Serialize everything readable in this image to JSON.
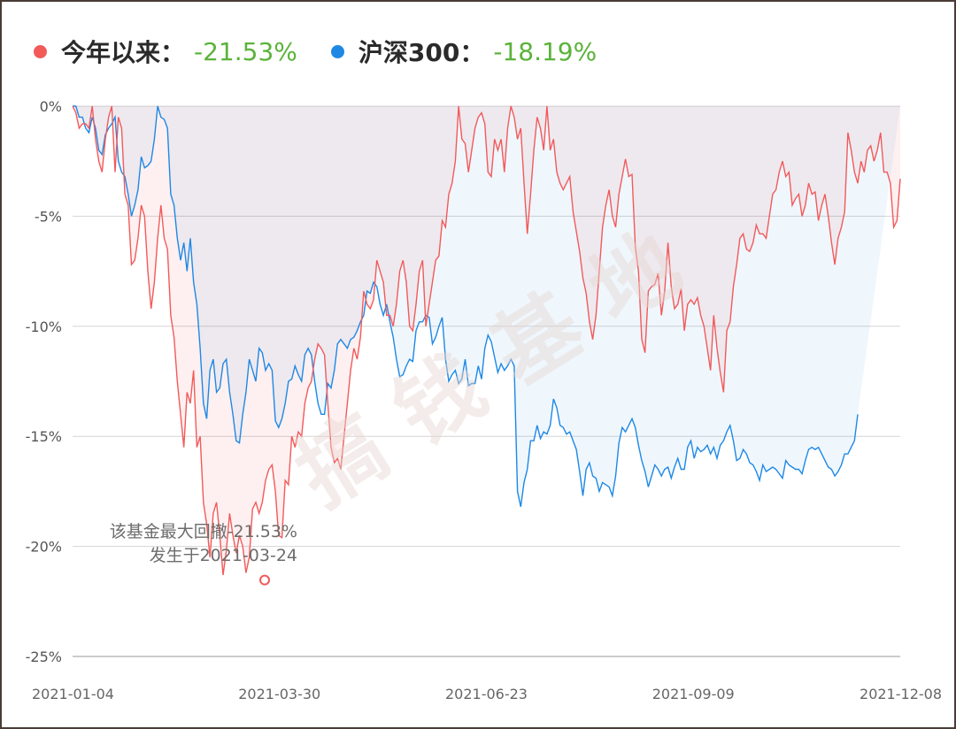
{
  "legend": {
    "fund": {
      "name": "今年以来：",
      "value": "-21.53%",
      "color": "#f25a5a"
    },
    "index": {
      "name": "沪深300：",
      "value": "-18.19%",
      "color": "#1e88e5"
    }
  },
  "watermark": "搞钱基地",
  "annotation": {
    "line1": "该基金最大回撤-21.53%",
    "line2": "发生于2021-03-24"
  },
  "chart_data": {
    "type": "line",
    "ylim": [
      -25,
      0
    ],
    "yticks": [
      0,
      -5,
      -10,
      -15,
      -20,
      -25
    ],
    "ytick_labels": [
      "0%",
      "-5%",
      "-10%",
      "-15%",
      "-20%",
      "-25%"
    ],
    "xtick_labels": [
      "2021-01-04",
      "2021-03-30",
      "2021-06-23",
      "2021-09-09",
      "2021-12-08"
    ],
    "grid": true,
    "max_drawdown": {
      "date": "2021-03-24",
      "value": -21.53
    },
    "series": [
      {
        "name": "今年以来",
        "color": "#f25a5a",
        "values": [
          0,
          -0.3,
          -1,
          -0.8,
          -0.8,
          -1,
          0,
          -1.5,
          -2.5,
          -3,
          -1.5,
          -0.5,
          0,
          -3,
          -0.5,
          -1,
          -4,
          -4.5,
          -7.2,
          -7,
          -6,
          -4.5,
          -5,
          -7.5,
          -9.2,
          -8,
          -6,
          -4.5,
          -6,
          -6.5,
          -9.5,
          -10.5,
          -12.5,
          -14,
          -15.5,
          -13,
          -13.5,
          -12,
          -15.5,
          -15,
          -18,
          -19,
          -20.5,
          -18.5,
          -18,
          -19.5,
          -21.3,
          -20.2,
          -18.5,
          -19.5,
          -20.3,
          -19.5,
          -20,
          -21.2,
          -20.5,
          -18.3,
          -18,
          -18.5,
          -18,
          -17,
          -16.5,
          -16.3,
          -17.5,
          -19.5,
          -19.6,
          -17,
          -17.2,
          -15,
          -15.5,
          -14.8,
          -15,
          -13.5,
          -12.8,
          -12.5,
          -11.5,
          -10.8,
          -11,
          -11.3,
          -13.5,
          -15.5,
          -16.2,
          -16,
          -16.5,
          -15,
          -13.5,
          -12,
          -11,
          -11.5,
          -10.5,
          -8.4,
          -9,
          -9.2,
          -8.8,
          -7,
          -7.5,
          -8,
          -9.5,
          -9.5,
          -10,
          -9,
          -7.5,
          -7,
          -8,
          -10,
          -10.2,
          -9,
          -7.5,
          -7,
          -10,
          -9,
          -8,
          -7,
          -6.8,
          -5.2,
          -5.5,
          -4,
          -3.5,
          -2.5,
          0,
          -1.5,
          -1.7,
          -3,
          -2,
          -1,
          -0.5,
          -0.3,
          -0.8,
          -3,
          -3.2,
          -1.5,
          -2,
          -1.5,
          -3,
          -1,
          0,
          -0.5,
          -1.5,
          -1,
          -3.5,
          -5.8,
          -4,
          -2,
          -0.5,
          -1,
          -2,
          0,
          -2,
          -1.5,
          -3,
          -3.5,
          -3.8,
          -3.5,
          -3.2,
          -4.8,
          -5.7,
          -6.6,
          -7.8,
          -8.5,
          -9.8,
          -10.6,
          -9.5,
          -7.5,
          -5.5,
          -4.5,
          -3.8,
          -5,
          -5.5,
          -4,
          -3.2,
          -2.4,
          -3.2,
          -3.1,
          -6.4,
          -7.5,
          -10.6,
          -11.2,
          -8.4,
          -8.2,
          -8.1,
          -7.6,
          -9.5,
          -8.4,
          -6.2,
          -8.2,
          -9.2,
          -9,
          -8.3,
          -10.2,
          -9,
          -8.8,
          -9,
          -8.7,
          -9.5,
          -10,
          -11,
          -12,
          -9.5,
          -11,
          -12.1,
          -13,
          -10.2,
          -9.8,
          -8.2,
          -7.2,
          -6,
          -5.8,
          -6.5,
          -6.6,
          -6.2,
          -5.4,
          -5.8,
          -5.8,
          -6,
          -5,
          -4,
          -3.8,
          -3,
          -2.5,
          -3.2,
          -3,
          -4.5,
          -4.2,
          -4,
          -5,
          -4.5,
          -3.5,
          -4,
          -3.9,
          -5.2,
          -4.5,
          -4,
          -5,
          -6.2,
          -7.2,
          -6,
          -5.5,
          -4.8,
          -1.2,
          -2,
          -3,
          -3.5,
          -2.5,
          -3,
          -2,
          -1.8,
          -2.5,
          -2,
          -1.2,
          -3,
          -3,
          -3.5,
          -5.5,
          -5.2,
          -3.3
        ]
      },
      {
        "name": "沪深300",
        "color": "#1e88e5",
        "values": [
          0,
          0,
          -0.5,
          -0.5,
          -1,
          -1.2,
          -0.5,
          -1,
          -2,
          -2.2,
          -1.3,
          -1,
          -0.8,
          -0.5,
          -2.5,
          -3,
          -3.2,
          -4,
          -5,
          -4.5,
          -3.8,
          -2.3,
          -2.8,
          -2.7,
          -2.5,
          -1.5,
          0,
          -0.5,
          -0.6,
          -1,
          -4,
          -4.5,
          -6,
          -7,
          -6.2,
          -7.5,
          -6,
          -8,
          -9,
          -11,
          -13.5,
          -14.2,
          -12,
          -11.5,
          -13,
          -12.8,
          -11.7,
          -11.5,
          -13,
          -14,
          -15.2,
          -15.3,
          -14,
          -13,
          -11.5,
          -12,
          -12.5,
          -11,
          -11.2,
          -12,
          -11.7,
          -12,
          -14.3,
          -14.6,
          -14.2,
          -13.5,
          -12.5,
          -12.4,
          -11.8,
          -12.2,
          -12.5,
          -11.3,
          -11,
          -11.3,
          -12.5,
          -13.5,
          -14,
          -14,
          -12.6,
          -12.8,
          -12,
          -10.8,
          -10.6,
          -10.8,
          -11,
          -10.6,
          -10.5,
          -10.2,
          -9.8,
          -9.5,
          -8.4,
          -8.5,
          -8,
          -8.2,
          -9,
          -9.5,
          -9,
          -9.8,
          -10.5,
          -11.5,
          -12.3,
          -12.2,
          -11.8,
          -11.5,
          -11.6,
          -10.2,
          -9.8,
          -9.8,
          -9.5,
          -9.6,
          -10.8,
          -10.5,
          -10,
          -9.6,
          -11.5,
          -12.5,
          -12.2,
          -12,
          -12.6,
          -12.4,
          -11.5,
          -12.7,
          -12.6,
          -12.6,
          -11.8,
          -12.4,
          -11,
          -10.4,
          -10.7,
          -11.4,
          -12.1,
          -11.7,
          -12,
          -11.8,
          -11.5,
          -11.8,
          -17.5,
          -18.2,
          -17.1,
          -16.5,
          -15.2,
          -15.2,
          -14.5,
          -15.1,
          -14.8,
          -14.9,
          -14.5,
          -13.3,
          -13.7,
          -14.5,
          -14.6,
          -14.9,
          -14.8,
          -15.2,
          -15.6,
          -16.6,
          -17.7,
          -16.5,
          -16.2,
          -16.8,
          -16.9,
          -17.5,
          -17.1,
          -17.2,
          -17.3,
          -17.7,
          -16.8,
          -15.3,
          -14.6,
          -14.8,
          -14.5,
          -14.2,
          -14.6,
          -15.4,
          -16.1,
          -16.6,
          -17.3,
          -16.8,
          -16.3,
          -16.5,
          -16.8,
          -16.5,
          -16.4,
          -16.9,
          -16.4,
          -16,
          -16.5,
          -16.5,
          -15.5,
          -15.2,
          -16,
          -15.5,
          -15.7,
          -15.6,
          -15.4,
          -15.8,
          -15.5,
          -16,
          -15.4,
          -15.2,
          -14.8,
          -14.5,
          -15.2,
          -16.1,
          -16,
          -15.6,
          -15.8,
          -16.2,
          -16.3,
          -16.6,
          -17,
          -16.3,
          -16.6,
          -16.5,
          -16.4,
          -16.5,
          -16.7,
          -16.9,
          -16.1,
          -16.3,
          -16.4,
          -16.5,
          -16.5,
          -16.7,
          -16.1,
          -15.6,
          -15.5,
          -15.6,
          -15.5,
          -15.8,
          -16.1,
          -16.4,
          -16.5,
          -16.8,
          -16.6,
          -16.3,
          -15.8,
          -15.8,
          -15.5,
          -15.2,
          -14
        ]
      }
    ]
  }
}
